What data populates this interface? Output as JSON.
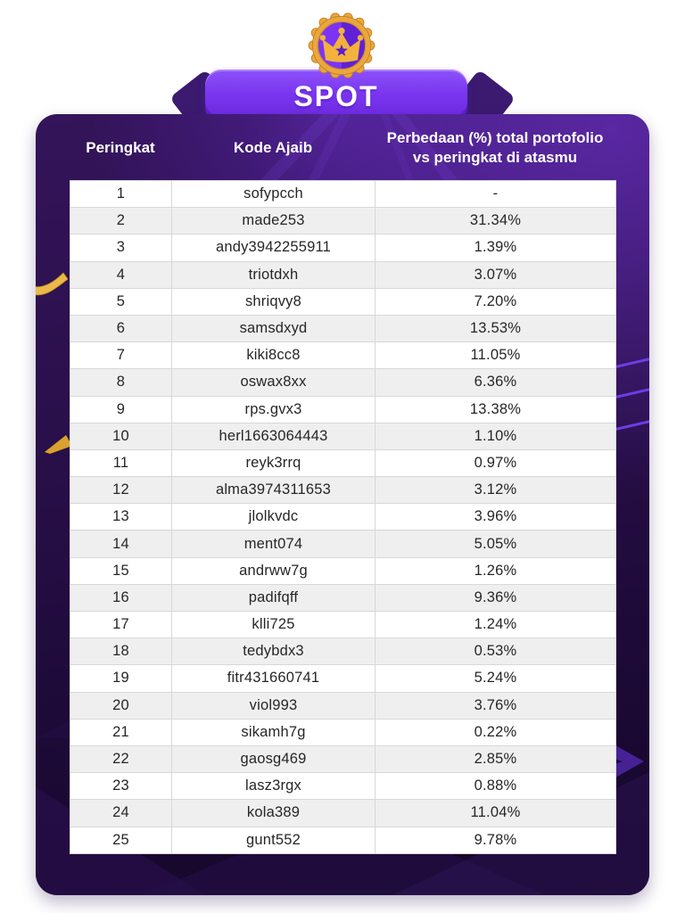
{
  "banner": {
    "title": "SPOT"
  },
  "badge": {
    "icon": "crown-medallion-icon"
  },
  "table": {
    "headers": {
      "rank": "Peringkat",
      "code": "Kode Ajaib",
      "diff": "Perbedaan (%) total portofolio vs peringkat di atasmu"
    },
    "rows": [
      {
        "rank": "1",
        "code": "sofypcch",
        "diff": "-"
      },
      {
        "rank": "2",
        "code": "made253",
        "diff": "31.34%"
      },
      {
        "rank": "3",
        "code": "andy3942255911",
        "diff": "1.39%"
      },
      {
        "rank": "4",
        "code": "triotdxh",
        "diff": "3.07%"
      },
      {
        "rank": "5",
        "code": "shriqvy8",
        "diff": "7.20%"
      },
      {
        "rank": "6",
        "code": "samsdxyd",
        "diff": "13.53%"
      },
      {
        "rank": "7",
        "code": "kiki8cc8",
        "diff": "11.05%"
      },
      {
        "rank": "8",
        "code": "oswax8xx",
        "diff": "6.36%"
      },
      {
        "rank": "9",
        "code": "rps.gvx3",
        "diff": "13.38%"
      },
      {
        "rank": "10",
        "code": "herl1663064443",
        "diff": "1.10%"
      },
      {
        "rank": "11",
        "code": "reyk3rrq",
        "diff": "0.97%"
      },
      {
        "rank": "12",
        "code": "alma3974311653",
        "diff": "3.12%"
      },
      {
        "rank": "13",
        "code": "jlolkvdc",
        "diff": "3.96%"
      },
      {
        "rank": "14",
        "code": "ment074",
        "diff": "5.05%"
      },
      {
        "rank": "15",
        "code": "andrww7g",
        "diff": "1.26%"
      },
      {
        "rank": "16",
        "code": "padifqff",
        "diff": "9.36%"
      },
      {
        "rank": "17",
        "code": "klli725",
        "diff": "1.24%"
      },
      {
        "rank": "18",
        "code": "tedybdx3",
        "diff": "0.53%"
      },
      {
        "rank": "19",
        "code": "fitr431660741",
        "diff": "5.24%"
      },
      {
        "rank": "20",
        "code": "viol993",
        "diff": "3.76%"
      },
      {
        "rank": "21",
        "code": "sikamh7g",
        "diff": "0.22%"
      },
      {
        "rank": "22",
        "code": "gaosg469",
        "diff": "2.85%"
      },
      {
        "rank": "23",
        "code": "lasz3rgx",
        "diff": "0.88%"
      },
      {
        "rank": "24",
        "code": "kola389",
        "diff": "11.04%"
      },
      {
        "rank": "25",
        "code": "gunt552",
        "diff": "9.78%"
      }
    ]
  },
  "colors": {
    "banner_purple": "#7a36ee",
    "wing_purple": "#3b1a70",
    "card_top": "#34145a",
    "card_bottom": "#150628",
    "gold": "#eda63e",
    "row_alt": "#efefef",
    "cell_border": "#d8d8d8",
    "text_dark": "#262626",
    "header_text": "#ffffff"
  }
}
